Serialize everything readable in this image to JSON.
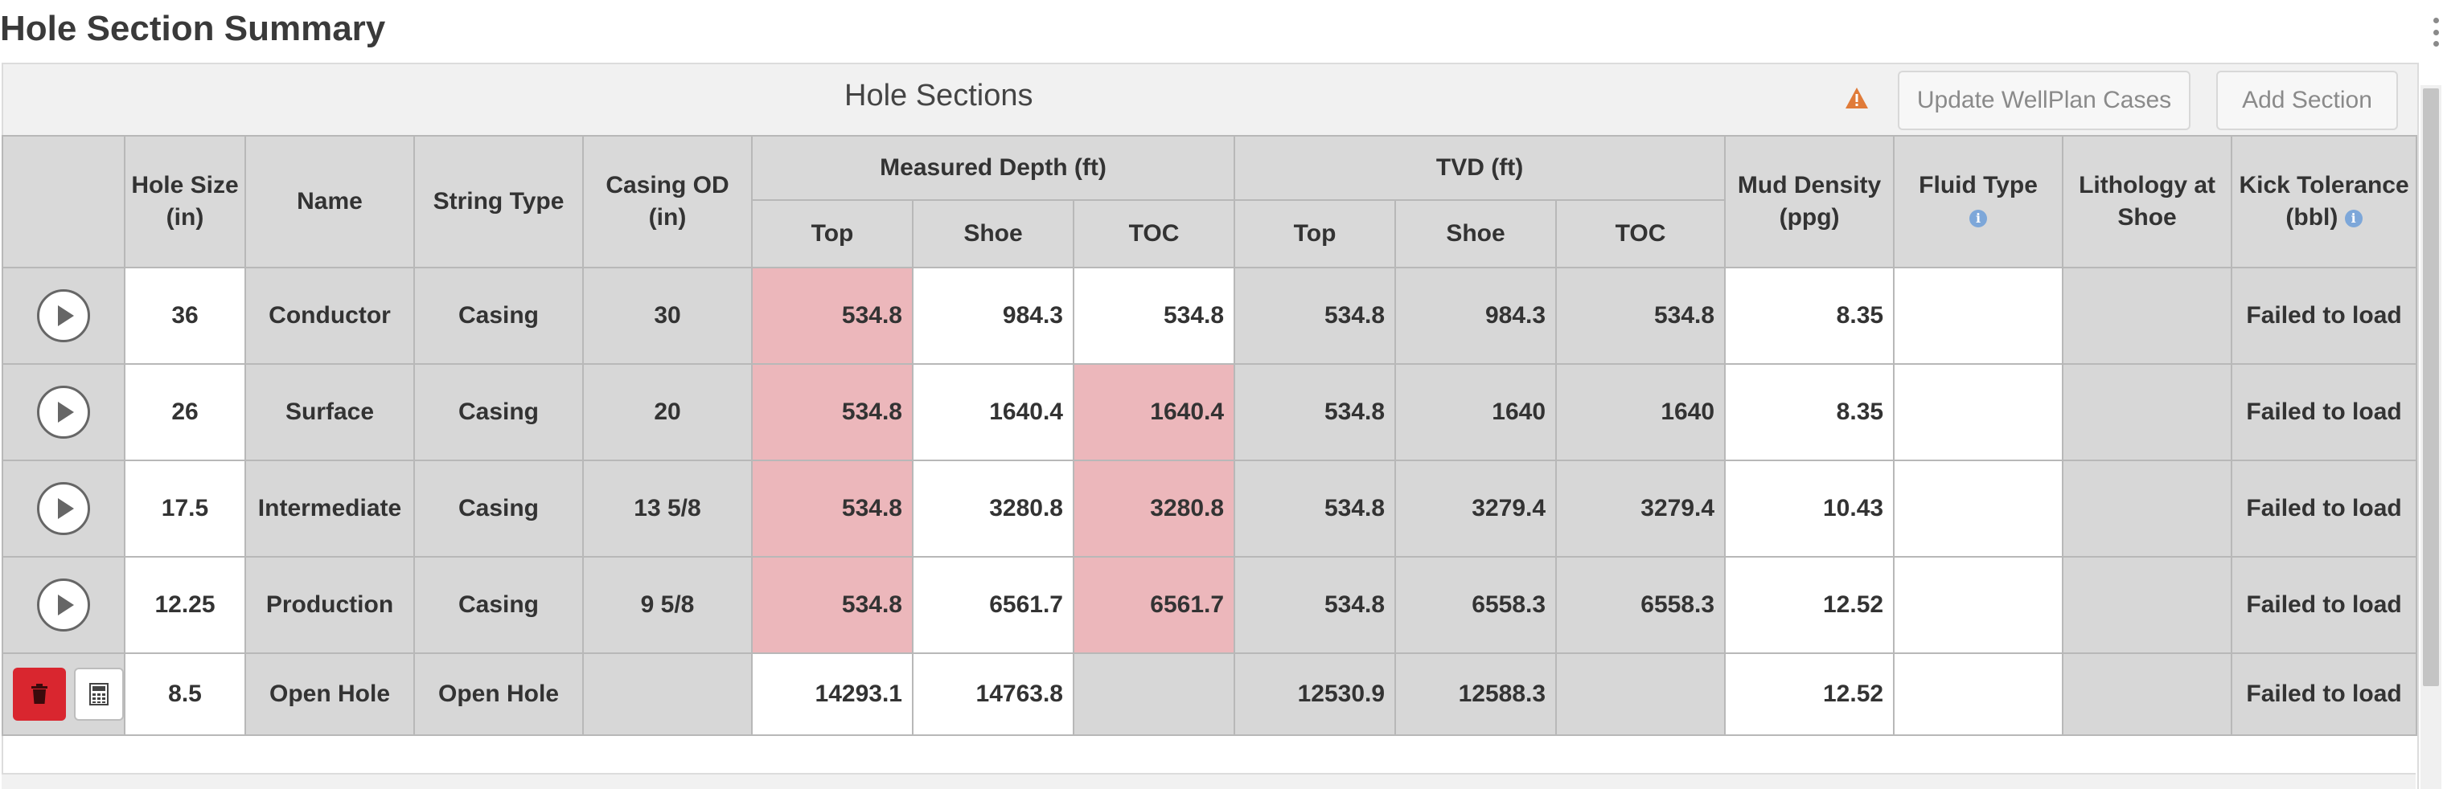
{
  "page": {
    "title": "Hole Section Summary"
  },
  "panel": {
    "title": "Hole Sections",
    "update_button": "Update WellPlan Cases",
    "add_button": "Add Section",
    "colors": {
      "warning": "#e07b39",
      "delete": "#d9262f",
      "highlight": "#ecb7bb",
      "info": "#7da7d9"
    }
  },
  "table": {
    "headers": {
      "hole_size": "Hole Size (in)",
      "name": "Name",
      "string_type": "String Type",
      "casing_od": "Casing OD (in)",
      "measured_depth": "Measured Depth (ft)",
      "tvd": "TVD (ft)",
      "mud_density": "Mud Density (ppg)",
      "fluid_type": "Fluid Type",
      "lithology": "Lithology at Shoe",
      "kick_tolerance": "Kick Tolerance (bbl)",
      "top": "Top",
      "shoe": "Shoe",
      "toc": "TOC"
    },
    "rows": [
      {
        "hole_size": "36",
        "name": "Conductor",
        "string_type": "Casing",
        "casing_od": "30",
        "md_top": "534.8",
        "md_shoe": "984.3",
        "md_toc": "534.8",
        "tvd_top": "534.8",
        "tvd_shoe": "984.3",
        "tvd_toc": "534.8",
        "mud_density": "8.35",
        "fluid_type": "",
        "lithology": "",
        "kick_tolerance": "Failed to load"
      },
      {
        "hole_size": "26",
        "name": "Surface",
        "string_type": "Casing",
        "casing_od": "20",
        "md_top": "534.8",
        "md_shoe": "1640.4",
        "md_toc": "1640.4",
        "tvd_top": "534.8",
        "tvd_shoe": "1640",
        "tvd_toc": "1640",
        "mud_density": "8.35",
        "fluid_type": "",
        "lithology": "",
        "kick_tolerance": "Failed to load"
      },
      {
        "hole_size": "17.5",
        "name": "Intermediate",
        "string_type": "Casing",
        "casing_od": "13 5/8",
        "md_top": "534.8",
        "md_shoe": "3280.8",
        "md_toc": "3280.8",
        "tvd_top": "534.8",
        "tvd_shoe": "3279.4",
        "tvd_toc": "3279.4",
        "mud_density": "10.43",
        "fluid_type": "",
        "lithology": "",
        "kick_tolerance": "Failed to load"
      },
      {
        "hole_size": "12.25",
        "name": "Production",
        "string_type": "Casing",
        "casing_od": "9 5/8",
        "md_top": "534.8",
        "md_shoe": "6561.7",
        "md_toc": "6561.7",
        "tvd_top": "534.8",
        "tvd_shoe": "6558.3",
        "tvd_toc": "6558.3",
        "mud_density": "12.52",
        "fluid_type": "",
        "lithology": "",
        "kick_tolerance": "Failed to load"
      },
      {
        "hole_size": "8.5",
        "name": "Open Hole",
        "string_type": "Open Hole",
        "casing_od": "",
        "md_top": "14293.1",
        "md_shoe": "14763.8",
        "md_toc": "",
        "tvd_top": "12530.9",
        "tvd_shoe": "12588.3",
        "tvd_toc": "",
        "mud_density": "12.52",
        "fluid_type": "",
        "lithology": "",
        "kick_tolerance": "Failed to load"
      }
    ]
  },
  "icons": {
    "warning": "warning-triangle-icon",
    "play": "play-icon",
    "delete": "trash-icon",
    "calculator": "calculator-icon",
    "info": "info-icon",
    "menu": "kebab-menu-icon"
  }
}
